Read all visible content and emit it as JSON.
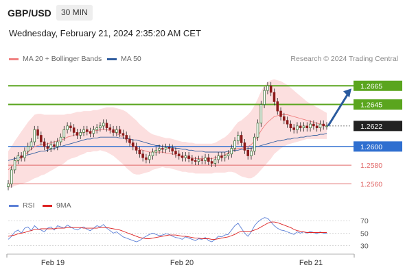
{
  "header": {
    "symbol": "GBP/USD",
    "timeframe": "30 MIN",
    "datetime": "Wednesday, February 21, 2024 2:35:20 AM CET"
  },
  "legend": {
    "ma20_label": "MA 20 + Bollinger Bands",
    "ma20_color": "#f08080",
    "ma50_label": "MA 50",
    "ma50_color": "#2f5c9e",
    "credit": "Research © 2024 Trading Central"
  },
  "rsi_legend": {
    "rsi_label": "RSI",
    "rsi_color": "#5b7fd6",
    "ma_label": "9MA",
    "ma_color": "#dd2222"
  },
  "colors": {
    "resistance": "#5aa51e",
    "support": "#e06666",
    "pivot": "#2f6fd0",
    "current": "#222222",
    "arrow": "#2a5a9e"
  },
  "chart_data": {
    "type": "candlestick",
    "ylim": [
      1.255,
      1.2685
    ],
    "levels": [
      {
        "name": "resistance-2",
        "value": 1.2665,
        "label": "1.2665",
        "kind": "resistance"
      },
      {
        "name": "resistance-1",
        "value": 1.2645,
        "label": "1.2645",
        "kind": "resistance"
      },
      {
        "name": "current-price",
        "value": 1.2622,
        "label": "1.2622",
        "kind": "current"
      },
      {
        "name": "pivot",
        "value": 1.26,
        "label": "1.2600",
        "kind": "pivot"
      },
      {
        "name": "support-1",
        "value": 1.258,
        "label": "1.2580",
        "kind": "support"
      },
      {
        "name": "support-2",
        "value": 1.256,
        "label": "1.2560",
        "kind": "support"
      }
    ],
    "x_ticks": [
      "Feb 19",
      "Feb 20",
      "Feb 21"
    ],
    "close": [
      1.256,
      1.2575,
      1.2585,
      1.259,
      1.2588,
      1.2595,
      1.26,
      1.2605,
      1.2618,
      1.2612,
      1.2605,
      1.26,
      1.2598,
      1.2602,
      1.26,
      1.2605,
      1.261,
      1.2618,
      1.2622,
      1.262,
      1.2615,
      1.2612,
      1.2615,
      1.2618,
      1.2616,
      1.2614,
      1.2618,
      1.262,
      1.2622,
      1.2625,
      1.262,
      1.2618,
      1.2615,
      1.2618,
      1.2614,
      1.2612,
      1.2608,
      1.2604,
      1.26,
      1.2596,
      1.2592,
      1.2588,
      1.2586,
      1.259,
      1.2594,
      1.2596,
      1.2598,
      1.2597,
      1.2599,
      1.2598,
      1.2595,
      1.2592,
      1.259,
      1.2588,
      1.259,
      1.2587,
      1.2585,
      1.2584,
      1.2586,
      1.2585,
      1.2588,
      1.2584,
      1.2582,
      1.2586,
      1.259,
      1.2588,
      1.259,
      1.2592,
      1.2598,
      1.2606,
      1.2612,
      1.2604,
      1.2596,
      1.259,
      1.2595,
      1.261,
      1.2625,
      1.2645,
      1.266,
      1.2665,
      1.2658,
      1.2648,
      1.2638,
      1.2632,
      1.2628,
      1.2624,
      1.262,
      1.2618,
      1.2622,
      1.262,
      1.2622,
      1.262,
      1.2624,
      1.2622,
      1.262,
      1.2624,
      1.2622,
      1.2622
    ],
    "ma20": [
      1.2575,
      1.2578,
      1.2582,
      1.2585,
      1.2588,
      1.2591,
      1.2594,
      1.2597,
      1.26,
      1.2601,
      1.2602,
      1.2602,
      1.2603,
      1.2604,
      1.2605,
      1.2606,
      1.2607,
      1.2608,
      1.261,
      1.2611,
      1.2612,
      1.2613,
      1.2614,
      1.2615,
      1.2616,
      1.2616,
      1.2617,
      1.2617,
      1.2618,
      1.2618,
      1.2618,
      1.2617,
      1.2616,
      1.2614,
      1.2612,
      1.261,
      1.2607,
      1.2604,
      1.2601,
      1.2599,
      1.2597,
      1.2596,
      1.2595,
      1.2594,
      1.2594,
      1.2594,
      1.2594,
      1.2594,
      1.2593,
      1.2593,
      1.2592,
      1.2591,
      1.259,
      1.2589,
      1.2589,
      1.2588,
      1.2588,
      1.2587,
      1.2587,
      1.2587,
      1.2587,
      1.2587,
      1.2587,
      1.2588,
      1.2589,
      1.259,
      1.2591,
      1.2593,
      1.2595,
      1.2597,
      1.2598,
      1.2598,
      1.2599,
      1.26,
      1.2602,
      1.2606,
      1.2611,
      1.2617,
      1.2622,
      1.2626,
      1.2629,
      1.2632,
      1.2633,
      1.2634,
      1.2634,
      1.2634,
      1.2633,
      1.2632,
      1.2631,
      1.263,
      1.2629,
      1.2628,
      1.2627,
      1.2626,
      1.2625,
      1.2624,
      1.2623,
      1.2622
    ],
    "ma50": [
      1.2585,
      1.2586,
      1.2587,
      1.2588,
      1.2589,
      1.259,
      1.2591,
      1.2592,
      1.2593,
      1.2594,
      1.2595,
      1.2595,
      1.2596,
      1.2597,
      1.2598,
      1.2599,
      1.26,
      1.2601,
      1.2602,
      1.2603,
      1.2604,
      1.2605,
      1.2606,
      1.2607,
      1.2608,
      1.2608,
      1.2609,
      1.2609,
      1.261,
      1.261,
      1.261,
      1.261,
      1.261,
      1.261,
      1.2609,
      1.2609,
      1.2609,
      1.2608,
      1.2607,
      1.2607,
      1.2606,
      1.2605,
      1.2604,
      1.2603,
      1.2602,
      1.2601,
      1.2601,
      1.26,
      1.26,
      1.2599,
      1.2599,
      1.2598,
      1.2598,
      1.2597,
      1.2597,
      1.2596,
      1.2596,
      1.2595,
      1.2595,
      1.2595,
      1.2594,
      1.2594,
      1.2594,
      1.2594,
      1.2594,
      1.2594,
      1.2594,
      1.2595,
      1.2595,
      1.2596,
      1.2596,
      1.2597,
      1.2597,
      1.2598,
      1.2598,
      1.2599,
      1.26,
      1.2601,
      1.2602,
      1.2603,
      1.2604,
      1.2605,
      1.2606,
      1.2606,
      1.2607,
      1.2608,
      1.2608,
      1.2609,
      1.2609,
      1.261,
      1.261,
      1.2611,
      1.2611,
      1.2612,
      1.2612,
      1.2613,
      1.2613,
      1.2614
    ],
    "bb_width": [
      0.002,
      0.0022,
      0.0024,
      0.0026,
      0.0028,
      0.003,
      0.0032,
      0.0033,
      0.0034,
      0.0034,
      0.0033,
      0.0032,
      0.0031,
      0.003,
      0.0029,
      0.0028,
      0.0027,
      0.0026,
      0.0025,
      0.0024,
      0.0024,
      0.0024,
      0.0023,
      0.0023,
      0.0022,
      0.0022,
      0.0022,
      0.0022,
      0.0022,
      0.0023,
      0.0024,
      0.0025,
      0.0026,
      0.0027,
      0.0028,
      0.0029,
      0.003,
      0.003,
      0.003,
      0.0029,
      0.0027,
      0.0025,
      0.0023,
      0.0021,
      0.0019,
      0.0018,
      0.0017,
      0.0016,
      0.0016,
      0.0016,
      0.0016,
      0.0016,
      0.0016,
      0.0016,
      0.0016,
      0.0016,
      0.0016,
      0.0016,
      0.0016,
      0.0016,
      0.0016,
      0.0016,
      0.0016,
      0.0016,
      0.0017,
      0.0018,
      0.0019,
      0.002,
      0.0022,
      0.0025,
      0.0028,
      0.003,
      0.0032,
      0.0034,
      0.0036,
      0.0038,
      0.004,
      0.0042,
      0.0043,
      0.0043,
      0.0042,
      0.004,
      0.0038,
      0.0036,
      0.0034,
      0.0032,
      0.003,
      0.0028,
      0.0026,
      0.0024,
      0.0022,
      0.002,
      0.0019,
      0.0018,
      0.0017,
      0.0016,
      0.0015,
      0.0014
    ],
    "rsi": {
      "levels": [
        70,
        50,
        30
      ],
      "ylim": [
        25,
        78
      ],
      "rsi": [
        40,
        45,
        52,
        55,
        50,
        58,
        60,
        54,
        62,
        57,
        55,
        52,
        58,
        60,
        55,
        62,
        60,
        58,
        63,
        60,
        57,
        55,
        58,
        60,
        56,
        54,
        58,
        62,
        60,
        64,
        58,
        54,
        50,
        52,
        48,
        44,
        42,
        40,
        38,
        36,
        38,
        42,
        45,
        48,
        50,
        48,
        46,
        47,
        49,
        48,
        45,
        43,
        42,
        40,
        44,
        42,
        40,
        38,
        41,
        40,
        43,
        38,
        36,
        40,
        45,
        44,
        47,
        48,
        55,
        62,
        66,
        58,
        50,
        45,
        52,
        62,
        68,
        72,
        75,
        74,
        68,
        62,
        58,
        55,
        54,
        52,
        50,
        48,
        52,
        50,
        52,
        50,
        53,
        51,
        49,
        52,
        50,
        50
      ],
      "ma9": [
        45,
        46,
        47,
        49,
        50,
        51,
        53,
        54,
        56,
        56,
        57,
        57,
        57,
        57,
        57,
        58,
        58,
        58,
        59,
        59,
        59,
        59,
        59,
        58,
        58,
        58,
        58,
        58,
        59,
        59,
        59,
        58,
        57,
        56,
        55,
        53,
        51,
        49,
        47,
        45,
        43,
        42,
        41,
        41,
        42,
        43,
        44,
        45,
        46,
        47,
        47,
        47,
        46,
        45,
        45,
        44,
        43,
        42,
        42,
        41,
        41,
        41,
        40,
        40,
        41,
        42,
        43,
        44,
        46,
        48,
        51,
        53,
        53,
        53,
        53,
        55,
        57,
        60,
        63,
        66,
        68,
        68,
        67,
        65,
        63,
        61,
        59,
        56,
        54,
        53,
        52,
        51,
        51,
        51,
        51,
        51,
        51,
        51
      ]
    }
  }
}
